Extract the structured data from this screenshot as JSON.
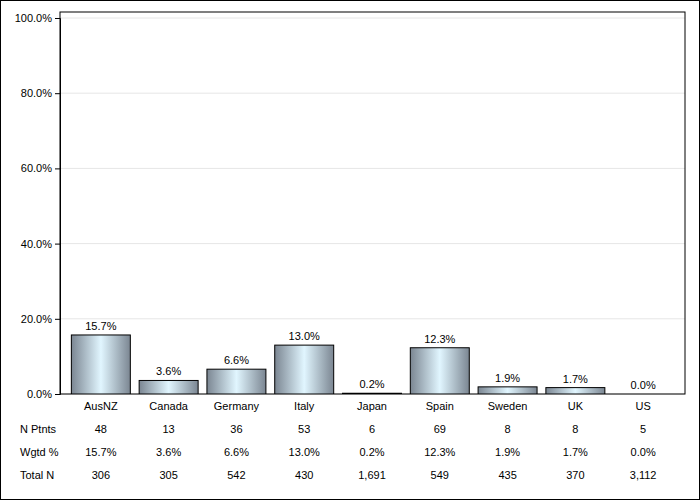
{
  "chart_data": {
    "type": "bar",
    "categories": [
      "AusNZ",
      "Canada",
      "Germany",
      "Italy",
      "Japan",
      "Spain",
      "Sweden",
      "UK",
      "US"
    ],
    "values": [
      15.7,
      3.6,
      6.6,
      13.0,
      0.2,
      12.3,
      1.9,
      1.7,
      0.0
    ],
    "value_labels": [
      "15.7%",
      "3.6%",
      "6.6%",
      "13.0%",
      "0.2%",
      "12.3%",
      "1.9%",
      "1.7%",
      "0.0%"
    ],
    "data_labels": true,
    "color": "#a9b9c9",
    "ylim": [
      0,
      100
    ],
    "yticks": [
      {
        "value": 0,
        "label": "0.0%"
      },
      {
        "value": 20,
        "label": "20.0%"
      },
      {
        "value": 40,
        "label": "40.0%"
      },
      {
        "value": 60,
        "label": "60.0%"
      },
      {
        "value": 80,
        "label": "80.0%"
      },
      {
        "value": 100,
        "label": "100.0%"
      }
    ],
    "grid": true,
    "table": [
      {
        "name": "N Ptnts",
        "values": [
          48,
          13,
          36,
          53,
          6,
          69,
          8,
          8,
          5
        ]
      },
      {
        "name": "Wgtd %",
        "values": [
          15.7,
          3.6,
          6.6,
          13.0,
          0.2,
          12.3,
          1.9,
          1.7,
          0.0
        ],
        "value_labels": [
          "15.7%",
          "3.6%",
          "6.6%",
          "13.0%",
          "0.2%",
          "12.3%",
          "1.9%",
          "1.7%",
          "0.0%"
        ]
      },
      {
        "name": "Total N",
        "values": [
          306,
          305,
          542,
          430,
          1691,
          549,
          435,
          370,
          3112
        ],
        "value_labels": [
          "306",
          "305",
          "542",
          "430",
          "1,691",
          "549",
          "435",
          "370",
          "3,112"
        ]
      }
    ]
  }
}
